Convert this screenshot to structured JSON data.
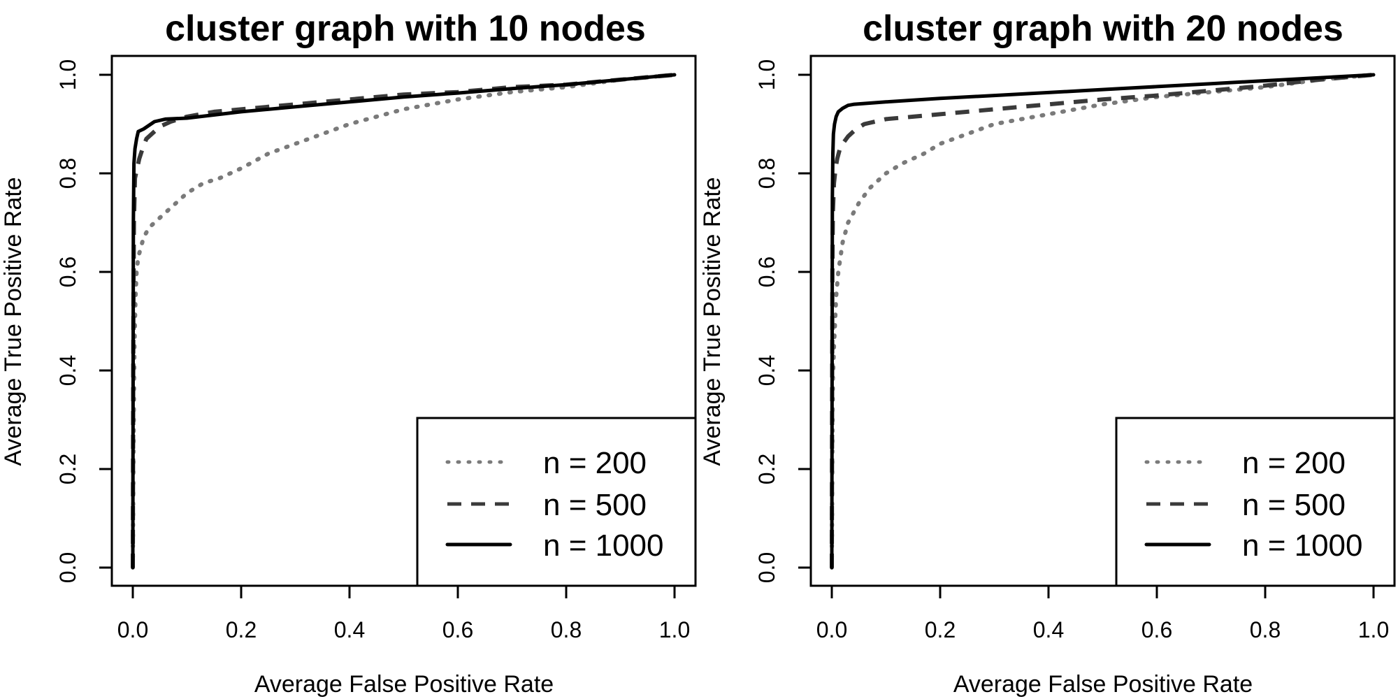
{
  "colors": {
    "n200": "#7a7a7a",
    "n500": "#3a3a3a",
    "n1000": "#000000",
    "axes": "#000000",
    "background": "#ffffff"
  },
  "chart_data": [
    {
      "type": "line",
      "title": "cluster graph with 10 nodes",
      "xlabel": "Average False Positive Rate",
      "ylabel": "Average True Positive Rate",
      "xlim": [
        0,
        1
      ],
      "ylim": [
        0,
        1
      ],
      "x_ticks": [
        "0.0",
        "0.2",
        "0.4",
        "0.6",
        "0.8",
        "1.0"
      ],
      "y_ticks": [
        "0.0",
        "0.2",
        "0.4",
        "0.6",
        "0.8",
        "1.0"
      ],
      "legend_position": "bottom-right",
      "legend": [
        "n = 200",
        "n = 500",
        "n = 1000"
      ],
      "series": [
        {
          "name": "n = 200",
          "style": "dotted",
          "x": [
            0,
            0.001,
            0.002,
            0.003,
            0.005,
            0.007,
            0.01,
            0.015,
            0.02,
            0.03,
            0.04,
            0.06,
            0.08,
            0.1,
            0.13,
            0.16,
            0.2,
            0.25,
            0.3,
            0.35,
            0.4,
            0.5,
            0.6,
            0.7,
            0.8,
            0.9,
            1.0
          ],
          "y": [
            0,
            0.2,
            0.35,
            0.45,
            0.55,
            0.6,
            0.63,
            0.65,
            0.67,
            0.69,
            0.7,
            0.72,
            0.74,
            0.76,
            0.78,
            0.79,
            0.81,
            0.84,
            0.86,
            0.88,
            0.9,
            0.93,
            0.95,
            0.965,
            0.975,
            0.99,
            1.0
          ]
        },
        {
          "name": "n = 500",
          "style": "dashed",
          "x": [
            0,
            0.001,
            0.002,
            0.004,
            0.008,
            0.012,
            0.018,
            0.025,
            0.035,
            0.05,
            0.07,
            0.1,
            0.15,
            0.2,
            0.3,
            0.4,
            0.5,
            0.6,
            0.7,
            0.8,
            0.9,
            1.0
          ],
          "y": [
            0,
            0.5,
            0.7,
            0.79,
            0.81,
            0.83,
            0.85,
            0.87,
            0.88,
            0.895,
            0.905,
            0.915,
            0.925,
            0.93,
            0.94,
            0.95,
            0.96,
            0.965,
            0.975,
            0.98,
            0.99,
            1.0
          ]
        },
        {
          "name": "n = 1000",
          "style": "solid",
          "x": [
            0,
            0.001,
            0.002,
            0.004,
            0.007,
            0.01,
            0.02,
            0.04,
            0.06,
            0.1,
            0.2,
            0.3,
            0.4,
            0.5,
            0.6,
            0.7,
            0.8,
            0.9,
            1.0
          ],
          "y": [
            0,
            0.7,
            0.82,
            0.85,
            0.87,
            0.885,
            0.89,
            0.905,
            0.91,
            0.912,
            0.925,
            0.935,
            0.945,
            0.955,
            0.963,
            0.972,
            0.98,
            0.99,
            1.0
          ]
        }
      ]
    },
    {
      "type": "line",
      "title": "cluster graph with 20 nodes",
      "xlabel": "Average False Positive Rate",
      "ylabel": "Average True Positive Rate",
      "xlim": [
        0,
        1
      ],
      "ylim": [
        0,
        1
      ],
      "x_ticks": [
        "0.0",
        "0.2",
        "0.4",
        "0.6",
        "0.8",
        "1.0"
      ],
      "y_ticks": [
        "0.0",
        "0.2",
        "0.4",
        "0.6",
        "0.8",
        "1.0"
      ],
      "legend_position": "bottom-right",
      "legend": [
        "n = 200",
        "n = 500",
        "n = 1000"
      ],
      "series": [
        {
          "name": "n = 200",
          "style": "dotted",
          "x": [
            0,
            0.001,
            0.002,
            0.004,
            0.006,
            0.008,
            0.012,
            0.016,
            0.02,
            0.03,
            0.04,
            0.05,
            0.07,
            0.1,
            0.13,
            0.17,
            0.2,
            0.25,
            0.3,
            0.4,
            0.5,
            0.6,
            0.7,
            0.8,
            0.9,
            1.0
          ],
          "y": [
            0,
            0.25,
            0.38,
            0.45,
            0.5,
            0.55,
            0.6,
            0.63,
            0.66,
            0.7,
            0.72,
            0.74,
            0.77,
            0.8,
            0.82,
            0.84,
            0.86,
            0.88,
            0.9,
            0.92,
            0.94,
            0.955,
            0.965,
            0.975,
            0.99,
            1.0
          ]
        },
        {
          "name": "n = 500",
          "style": "dashed",
          "x": [
            0,
            0.001,
            0.002,
            0.004,
            0.007,
            0.01,
            0.015,
            0.02,
            0.03,
            0.045,
            0.06,
            0.08,
            0.1,
            0.15,
            0.2,
            0.3,
            0.4,
            0.5,
            0.6,
            0.7,
            0.8,
            0.9,
            1.0
          ],
          "y": [
            0,
            0.6,
            0.72,
            0.78,
            0.81,
            0.83,
            0.85,
            0.86,
            0.875,
            0.89,
            0.9,
            0.905,
            0.91,
            0.915,
            0.92,
            0.93,
            0.94,
            0.95,
            0.958,
            0.968,
            0.978,
            0.99,
            1.0
          ]
        },
        {
          "name": "n = 1000",
          "style": "solid",
          "x": [
            0,
            0.001,
            0.002,
            0.003,
            0.005,
            0.008,
            0.012,
            0.02,
            0.03,
            0.04,
            0.1,
            0.2,
            0.3,
            0.4,
            0.5,
            0.6,
            0.7,
            0.8,
            0.9,
            1.0
          ],
          "y": [
            0,
            0.75,
            0.84,
            0.88,
            0.9,
            0.915,
            0.925,
            0.932,
            0.938,
            0.94,
            0.945,
            0.952,
            0.958,
            0.964,
            0.97,
            0.976,
            0.982,
            0.988,
            0.994,
            1.0
          ]
        }
      ]
    }
  ]
}
